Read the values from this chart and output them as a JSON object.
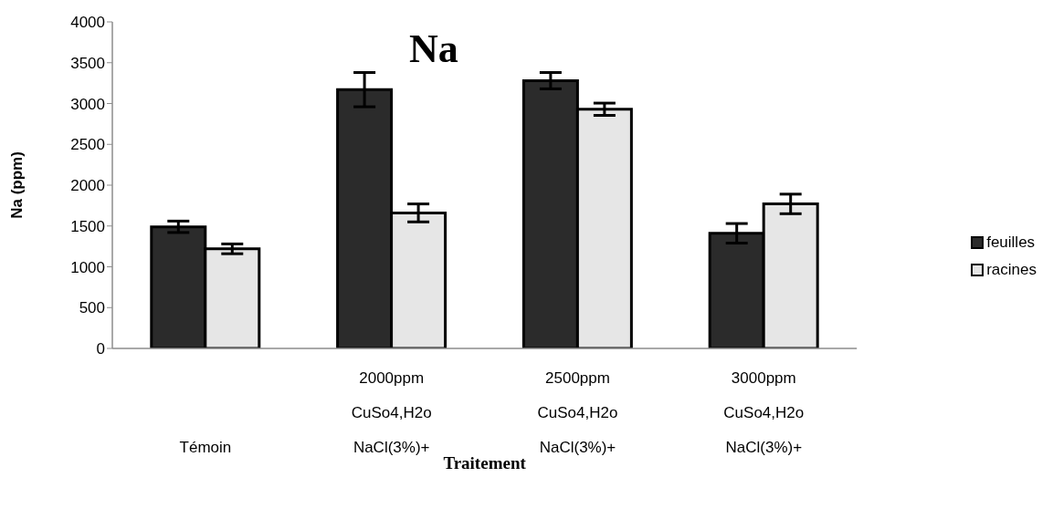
{
  "chart_data": {
    "type": "bar",
    "title": "Na",
    "xlabel": "Traitement",
    "ylabel": "Na (ppm)",
    "categories": [
      "Témoin",
      "2000ppm\nCuSo4,H2o\nNaCl(3%)+",
      "2500ppm\nCuSo4,H2o\nNaCl(3%)+",
      "3000ppm\nCuSo4,H2o\nNaCl(3%)+"
    ],
    "series": [
      {
        "name": "feuilles",
        "color": "#2b2b2b",
        "values": [
          1490,
          3170,
          3280,
          1410
        ],
        "errors": [
          70,
          210,
          100,
          120
        ]
      },
      {
        "name": "racines",
        "color": "#e6e6e6",
        "values": [
          1220,
          1660,
          2930,
          1770
        ],
        "errors": [
          60,
          110,
          75,
          120
        ]
      }
    ],
    "ylim": [
      0,
      4000
    ],
    "yticks": [
      0,
      500,
      1000,
      1500,
      2000,
      2500,
      3000,
      3500,
      4000
    ],
    "legend": "right"
  }
}
